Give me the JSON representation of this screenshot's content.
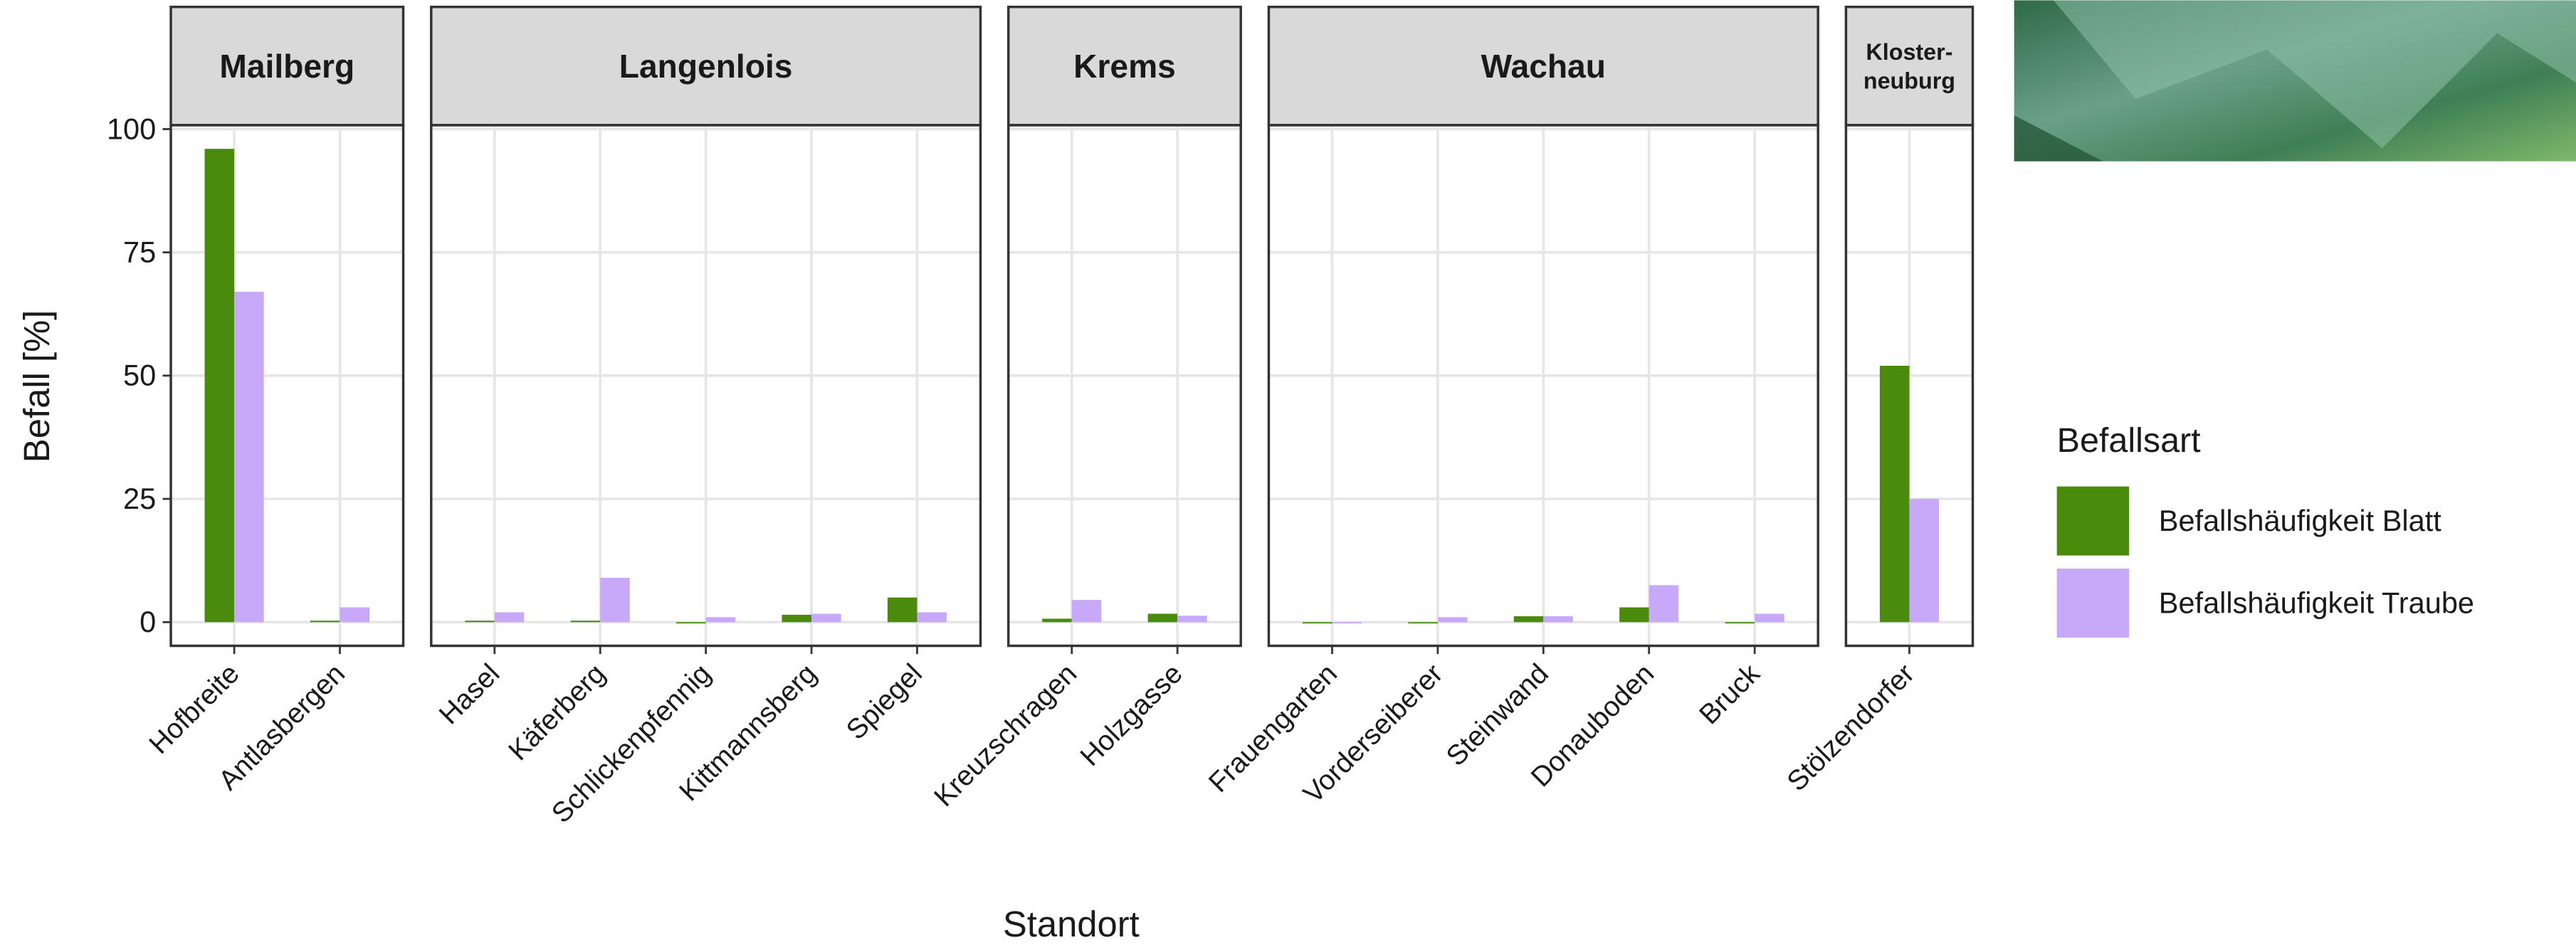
{
  "chart_data": {
    "type": "bar",
    "x_label": "Standort",
    "y_label": "Befall [%]",
    "facets": [
      {
        "title": "Mailberg",
        "categories": [
          "Hofbreite",
          "Antlasbergen"
        ]
      },
      {
        "title": "Langenlois",
        "categories": [
          "Hasel",
          "Käferberg",
          "Schlickenpfennig",
          "Kittmannsberg",
          "Spiegel"
        ]
      },
      {
        "title": "Krems",
        "categories": [
          "Kreuzschragen",
          "Holzgasse"
        ]
      },
      {
        "title": "Wachau",
        "categories": [
          "Frauengarten",
          "Vorderseiberer",
          "Steinwand",
          "Donauboden",
          "Bruck"
        ]
      },
      {
        "title": "Kloster-\nneuburg",
        "categories": [
          "Stölzendorfer"
        ]
      }
    ],
    "series": [
      {
        "name": "Befallshäufigkeit Blatt",
        "color": "#4a8a0c",
        "values": [
          96,
          0.3,
          0.3,
          0.3,
          0,
          1.5,
          5,
          0.7,
          1.7,
          0,
          0,
          1.2,
          3,
          0,
          52
        ]
      },
      {
        "name": "Befallshäufigkeit Traube",
        "color": "#c8a8f8",
        "values": [
          67,
          3,
          2,
          9,
          1,
          1.7,
          2,
          4.5,
          1.3,
          0,
          1,
          1.2,
          7.5,
          1.7,
          25
        ]
      }
    ],
    "ylim": [
      -4.8,
      100.8
    ],
    "yticks": [
      0,
      25,
      50,
      75,
      100
    ],
    "grid": true,
    "legend": {
      "title": "Befallsart",
      "position": "right"
    }
  }
}
